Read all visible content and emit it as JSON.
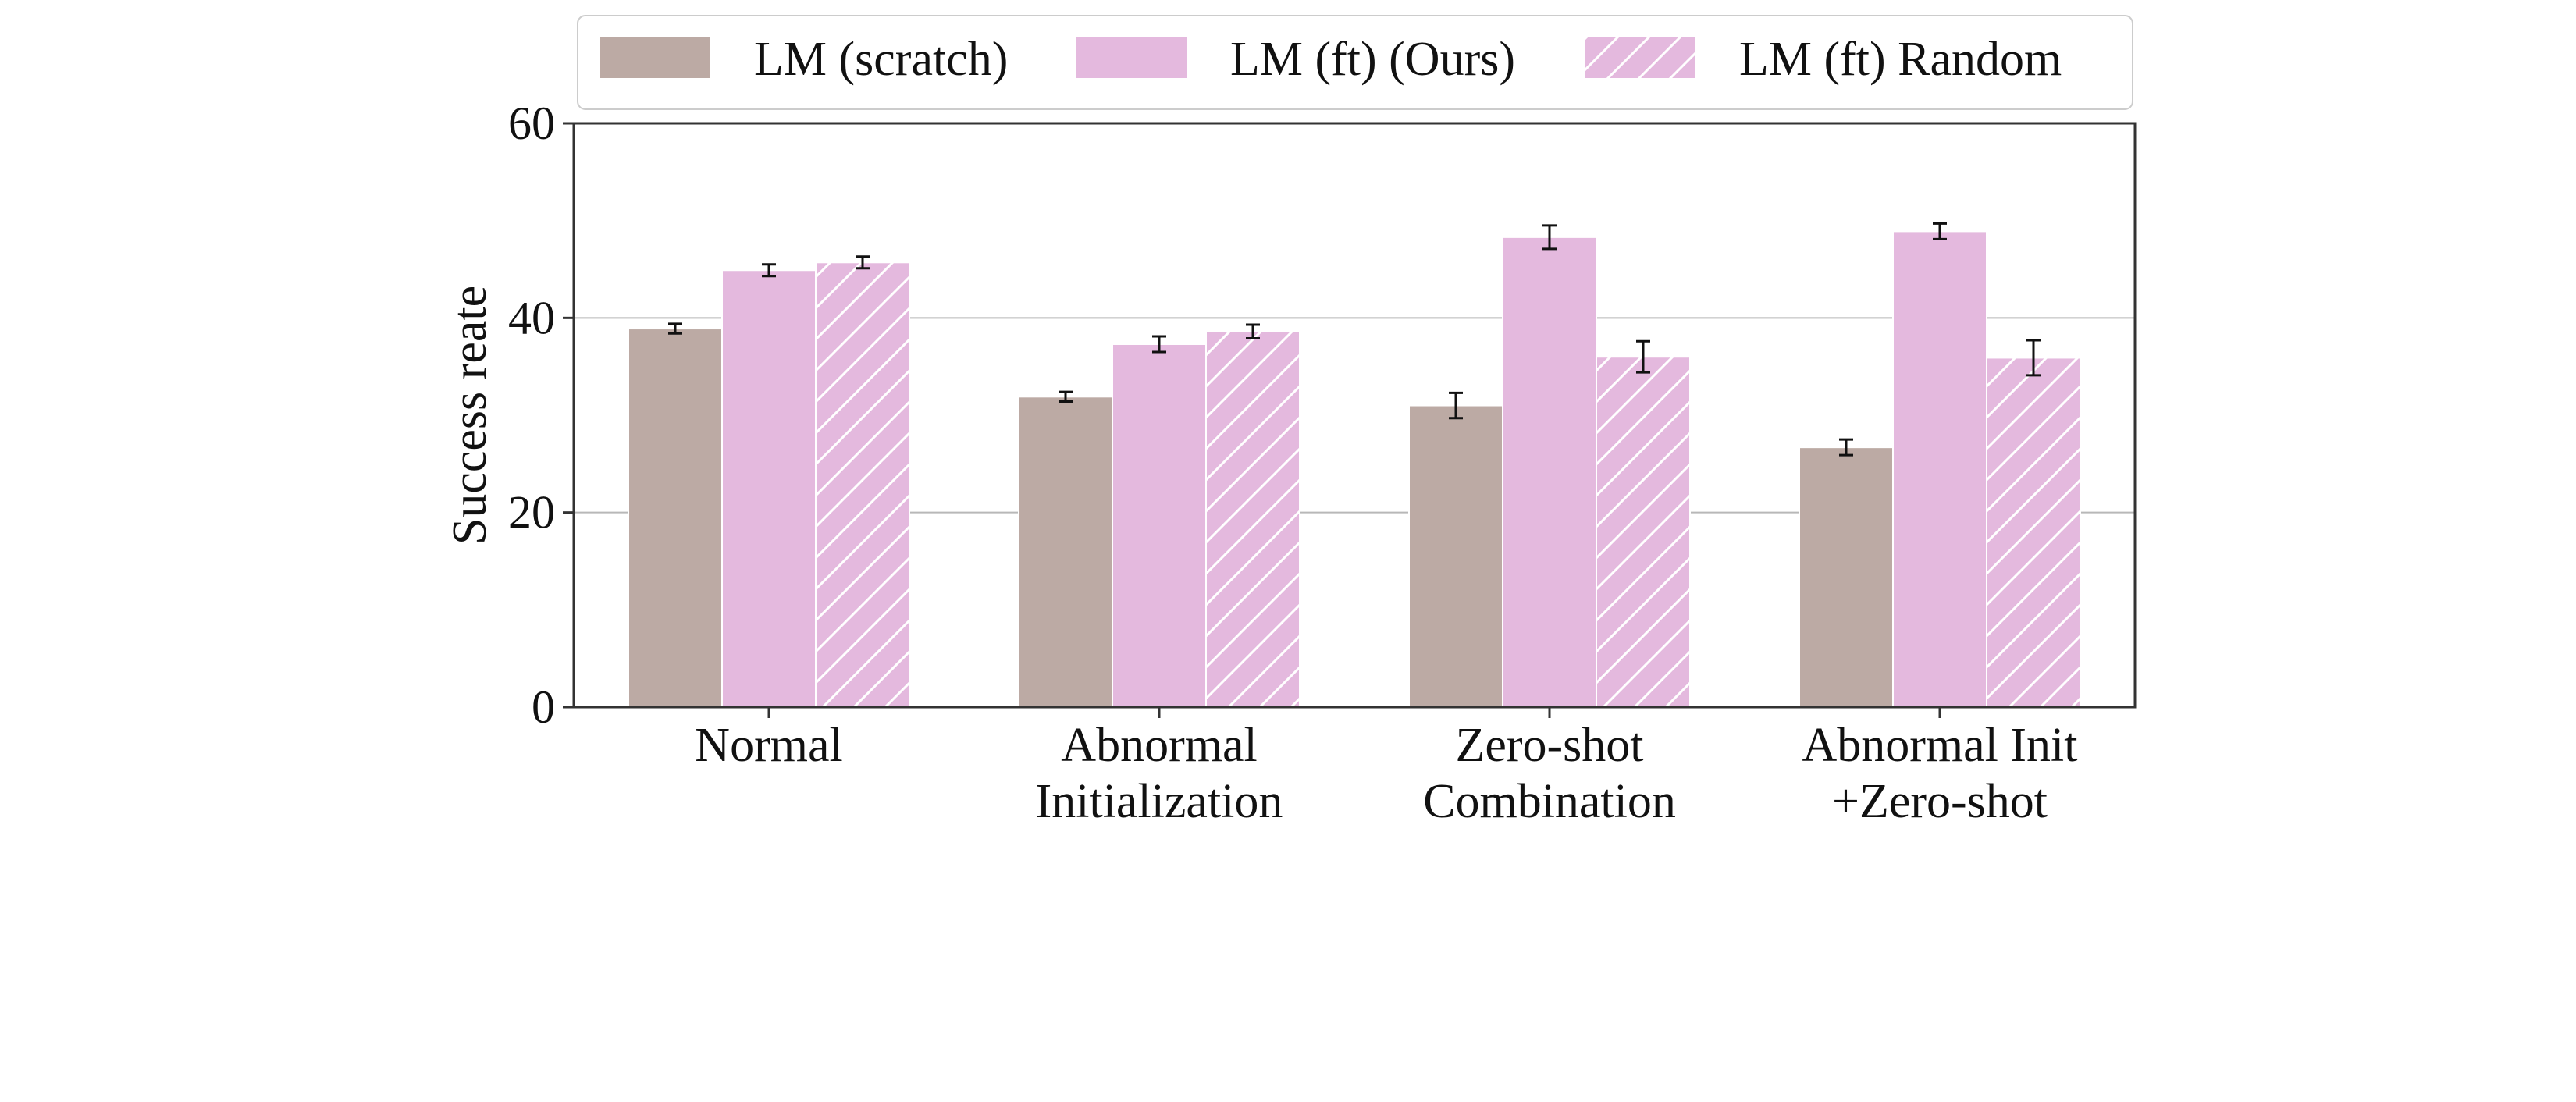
{
  "chart_data": {
    "type": "bar",
    "categories": [
      [
        "Normal"
      ],
      [
        "Abnormal",
        "Initialization"
      ],
      [
        "Zero-shot",
        "Combination"
      ],
      [
        "Abnormal Init",
        "+Zero-shot"
      ]
    ],
    "series": [
      {
        "name": "LM (scratch)",
        "color": "#bcaaa4",
        "hatch": false,
        "values": [
          38.9,
          31.9,
          31.0,
          26.7
        ],
        "errors": [
          0.5,
          0.5,
          1.3,
          0.8
        ]
      },
      {
        "name": "LM (ft) (Ours)",
        "color": "#e4b9de",
        "hatch": false,
        "values": [
          44.9,
          37.3,
          48.3,
          48.9
        ],
        "errors": [
          0.6,
          0.8,
          1.2,
          0.8
        ]
      },
      {
        "name": "LM (ft) Random",
        "color": "#e4b9de",
        "hatch": true,
        "values": [
          45.7,
          38.6,
          36.0,
          35.9
        ],
        "errors": [
          0.6,
          0.7,
          1.6,
          1.8
        ]
      }
    ],
    "xlabel": "",
    "ylabel": "Success reate",
    "ylim": [
      0,
      60
    ],
    "yticks": [
      0,
      20,
      40,
      60
    ],
    "grid": "horizontal",
    "legend_position": "top"
  }
}
